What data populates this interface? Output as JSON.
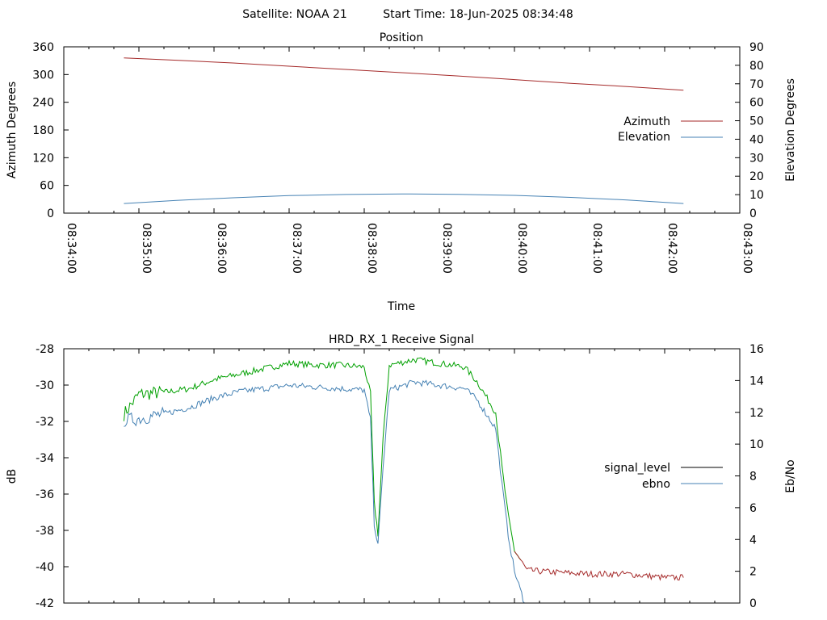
{
  "header": {
    "satellite_text": "Satellite: NOAA 21",
    "start_time_text": "Start Time: 18-Jun-2025 08:34:48"
  },
  "chart_data": [
    {
      "type": "line",
      "title": "Position",
      "xlabel": "Time",
      "ylabel": "Azimuth Degrees",
      "y2label": "Elevation Degrees",
      "xlim": [
        "08:34:00",
        "08:43:00"
      ],
      "x_ticks": [
        "08:34:00",
        "08:35:00",
        "08:36:00",
        "08:37:00",
        "08:38:00",
        "08:39:00",
        "08:40:00",
        "08:41:00",
        "08:42:00",
        "08:43:00"
      ],
      "ylim": [
        0,
        360
      ],
      "y_ticks": [
        0,
        60,
        120,
        180,
        240,
        300,
        360
      ],
      "y2lim": [
        0,
        90
      ],
      "y2_ticks": [
        0,
        10,
        20,
        30,
        40,
        50,
        60,
        70,
        80,
        90
      ],
      "legend_position": "right",
      "series": [
        {
          "name": "Azimuth",
          "axis": "y",
          "color": "#a52a2a",
          "x": [
            "08:34:48",
            "08:35:30",
            "08:36:15",
            "08:37:00",
            "08:37:45",
            "08:38:30",
            "08:39:15",
            "08:40:00",
            "08:40:45",
            "08:41:30",
            "08:42:15"
          ],
          "values": [
            336,
            331,
            325,
            318,
            311,
            304,
            297,
            289,
            281,
            274,
            266
          ]
        },
        {
          "name": "Elevation",
          "axis": "y2",
          "color": "#4682b4",
          "x": [
            "08:34:48",
            "08:35:30",
            "08:36:15",
            "08:37:00",
            "08:37:45",
            "08:38:30",
            "08:39:15",
            "08:40:00",
            "08:40:45",
            "08:41:30",
            "08:42:15"
          ],
          "values": [
            5.2,
            6.9,
            8.3,
            9.5,
            10.1,
            10.4,
            10.2,
            9.6,
            8.5,
            7.1,
            5.2
          ]
        }
      ]
    },
    {
      "type": "line",
      "title": "HRD_RX_1 Receive Signal",
      "ylabel": "dB",
      "y2label": "Eb/No",
      "xlim": [
        "08:34:00",
        "08:43:00"
      ],
      "ylim": [
        -42,
        -28
      ],
      "y_ticks": [
        -42,
        -40,
        -38,
        -36,
        -34,
        -32,
        -30,
        -28
      ],
      "y2lim": [
        0,
        16
      ],
      "y2_ticks": [
        0,
        2,
        4,
        6,
        8,
        10,
        12,
        14,
        16
      ],
      "legend_position": "right",
      "series": [
        {
          "name": "signal_level",
          "axis": "y",
          "color": "#000000",
          "segment_colors": {
            "locked": "#00a000",
            "unlocked": "#a52a2a"
          },
          "x": [
            "08:34:48",
            "08:35:00",
            "08:35:20",
            "08:35:40",
            "08:36:00",
            "08:36:20",
            "08:36:40",
            "08:37:00",
            "08:37:20",
            "08:37:40",
            "08:38:00",
            "08:38:05",
            "08:38:08",
            "08:38:11",
            "08:38:15",
            "08:38:20",
            "08:38:40",
            "08:39:00",
            "08:39:20",
            "08:39:30",
            "08:39:45",
            "08:39:50",
            "08:39:55",
            "08:40:00",
            "08:40:10",
            "08:40:30",
            "08:41:00",
            "08:41:30",
            "08:42:00",
            "08:42:15"
          ],
          "values": [
            -31.6,
            -30.5,
            -30.4,
            -30.2,
            -29.7,
            -29.4,
            -29.1,
            -28.8,
            -28.9,
            -28.9,
            -29.0,
            -30.5,
            -36.5,
            -38.2,
            -33.0,
            -28.9,
            -28.6,
            -28.8,
            -29.0,
            -29.8,
            -31.5,
            -34.5,
            -37.2,
            -39.1,
            -40.2,
            -40.3,
            -40.4,
            -40.4,
            -40.6,
            -40.6
          ]
        },
        {
          "name": "ebno",
          "axis": "y2",
          "color": "#4682b4",
          "x": [
            "08:34:48",
            "08:35:00",
            "08:35:20",
            "08:35:40",
            "08:36:00",
            "08:36:20",
            "08:36:40",
            "08:37:00",
            "08:37:20",
            "08:37:40",
            "08:38:00",
            "08:38:05",
            "08:38:08",
            "08:38:11",
            "08:38:15",
            "08:38:20",
            "08:38:40",
            "08:39:00",
            "08:39:20",
            "08:39:30",
            "08:39:45",
            "08:39:50",
            "08:39:55",
            "08:40:00",
            "08:40:08"
          ],
          "values": [
            11.5,
            11.6,
            11.9,
            12.3,
            12.9,
            13.3,
            13.5,
            13.7,
            13.6,
            13.5,
            13.4,
            11.5,
            5.0,
            3.6,
            8.5,
            13.4,
            13.9,
            13.7,
            13.5,
            12.8,
            11.0,
            7.5,
            4.3,
            2.0,
            0.0
          ]
        }
      ]
    }
  ]
}
